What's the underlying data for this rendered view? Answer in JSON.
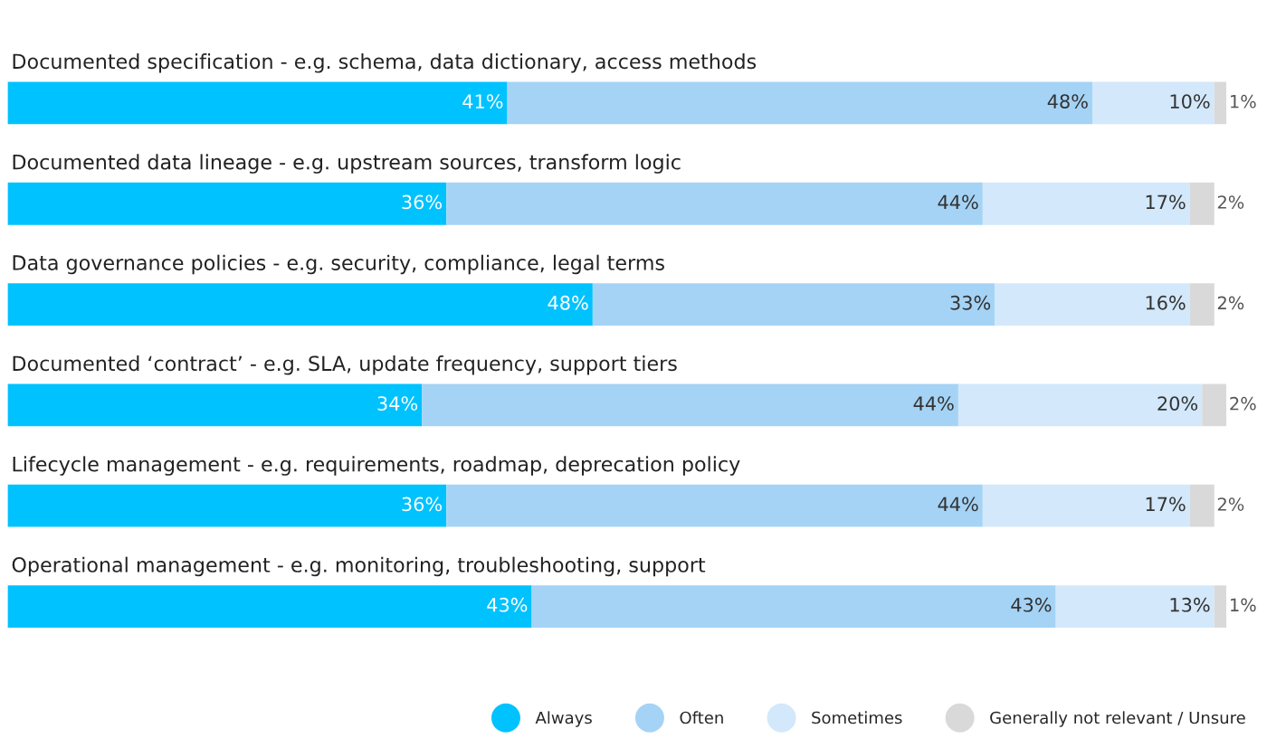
{
  "chart_data": {
    "type": "bar",
    "orientation": "horizontal",
    "stacked": true,
    "legend": "bottom right",
    "marker": "circle",
    "grid": false,
    "tick_labels": false,
    "categories": [
      "Documented specification - e.g. schema, data dictionary, access methods",
      "Documented data lineage - e.g. upstream sources, transform logic",
      "Data governance policies - e.g. security, compliance, legal terms",
      "Documented ‘contract’ - e.g. SLA, update frequency, support tiers",
      "Lifecycle management - e.g. requirements, roadmap, deprecation policy",
      "Operational management - e.g. monitoring, troubleshooting, support"
    ],
    "series": [
      {
        "name": "Always",
        "color": "#00c2ff",
        "values": [
          41,
          36,
          48,
          34,
          36,
          43
        ],
        "value_labels": [
          "41%",
          "36%",
          "48%",
          "34%",
          "36%",
          "43%"
        ]
      },
      {
        "name": "Often",
        "color": "#a5d3f5",
        "values": [
          48,
          44,
          33,
          44,
          44,
          43
        ],
        "value_labels": [
          "48%",
          "44%",
          "33%",
          "44%",
          "44%",
          "43%"
        ]
      },
      {
        "name": "Sometimes",
        "color": "#d3e8fa",
        "values": [
          10,
          17,
          16,
          20,
          17,
          13
        ],
        "value_labels": [
          "10%",
          "17%",
          "16%",
          "20%",
          "17%",
          "13%"
        ]
      },
      {
        "name": "Generally not relevant / Unsure",
        "color": "#d9d9d9",
        "values": [
          1,
          2,
          2,
          2,
          2,
          1
        ],
        "value_labels": [
          "1%",
          "2%",
          "2%",
          "2%",
          "2%",
          "1%"
        ]
      }
    ]
  }
}
